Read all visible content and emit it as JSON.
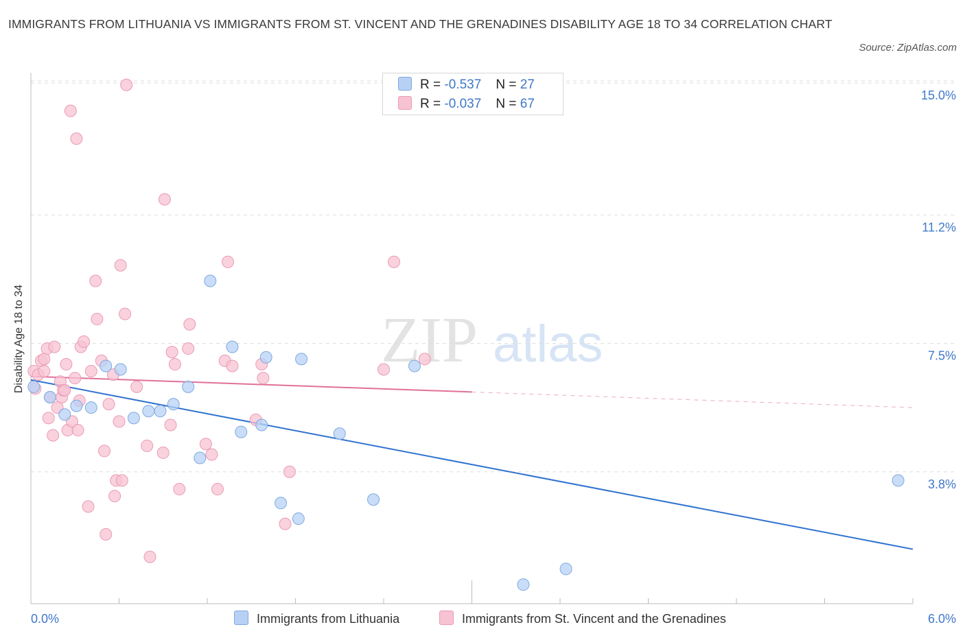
{
  "title": "IMMIGRANTS FROM LITHUANIA VS IMMIGRANTS FROM ST. VINCENT AND THE GRENADINES DISABILITY AGE 18 TO 34 CORRELATION CHART",
  "source": "Source: ZipAtlas.com",
  "watermark": {
    "zip": "ZIP",
    "atlas": "atlas"
  },
  "legend": {
    "rows": [
      {
        "r_label": "R =",
        "r_value": "-0.537",
        "n_label": "N =",
        "n_value": "27"
      },
      {
        "r_label": "R =",
        "r_value": "-0.037",
        "n_label": "N =",
        "n_value": "67"
      }
    ]
  },
  "bottom_legend": [
    "Immigrants from Lithuania",
    "Immigrants from St. Vincent and the Grenadines"
  ],
  "colors": {
    "blue_fill": "#b7d1f5",
    "blue_stroke": "#7fa8e0",
    "blue_line": "#2f72d0",
    "pink_fill": "#f7c3d3",
    "pink_stroke": "#eb9ab3",
    "pink_line": "#e0709a",
    "axis_text": "#3f78c9",
    "grid": "#dddddd"
  },
  "chart_data": {
    "type": "scatter",
    "title": "IMMIGRANTS FROM LITHUANIA VS IMMIGRANTS FROM ST. VINCENT AND THE GRENADINES DISABILITY AGE 18 TO 34 CORRELATION CHART",
    "xlabel": "",
    "ylabel": "Disability Age 18 to 34",
    "xlim": [
      0,
      6.0
    ],
    "ylim": [
      0,
      15.3
    ],
    "x_tick_labels": [
      "0.0%",
      "6.0%"
    ],
    "y_ticks": [
      3.8,
      7.5,
      11.2,
      15.0
    ],
    "y_tick_labels": [
      "3.8%",
      "7.5%",
      "11.2%",
      "15.0%"
    ],
    "grid": "horizontal dashed",
    "legend_position": "top-center",
    "series": [
      {
        "name": "Immigrants from Lithuania",
        "r": -0.537,
        "n": 27,
        "trend": {
          "x0": 0.0,
          "y0": 6.45,
          "x1": 6.0,
          "y1": 1.57,
          "solid_to": 6.0
        },
        "points": [
          [
            0.02,
            6.25
          ],
          [
            0.13,
            5.95
          ],
          [
            0.23,
            5.45
          ],
          [
            0.31,
            5.7
          ],
          [
            0.41,
            5.65
          ],
          [
            0.51,
            6.85
          ],
          [
            0.61,
            6.75
          ],
          [
            0.7,
            5.35
          ],
          [
            0.8,
            5.55
          ],
          [
            0.88,
            5.55
          ],
          [
            0.97,
            5.75
          ],
          [
            1.07,
            6.25
          ],
          [
            1.15,
            4.2
          ],
          [
            1.22,
            9.3
          ],
          [
            1.37,
            7.4
          ],
          [
            1.43,
            4.95
          ],
          [
            1.57,
            5.15
          ],
          [
            1.6,
            7.1
          ],
          [
            1.7,
            2.9
          ],
          [
            1.82,
            2.45
          ],
          [
            1.84,
            7.05
          ],
          [
            2.1,
            4.9
          ],
          [
            2.33,
            3.0
          ],
          [
            2.61,
            6.85
          ],
          [
            3.35,
            0.55
          ],
          [
            3.64,
            1.0
          ],
          [
            5.9,
            3.55
          ]
        ]
      },
      {
        "name": "Immigrants from St. Vincent and the Grenadines",
        "r": -0.037,
        "n": 67,
        "trend": {
          "x0": 0.0,
          "y0": 6.55,
          "x1": 6.0,
          "y1": 5.65,
          "solid_to": 3.0
        },
        "points": [
          [
            0.02,
            6.7
          ],
          [
            0.03,
            6.2
          ],
          [
            0.05,
            6.6
          ],
          [
            0.07,
            7.0
          ],
          [
            0.09,
            7.05
          ],
          [
            0.09,
            6.7
          ],
          [
            0.11,
            7.35
          ],
          [
            0.12,
            5.35
          ],
          [
            0.13,
            5.95
          ],
          [
            0.15,
            4.85
          ],
          [
            0.16,
            7.4
          ],
          [
            0.18,
            5.65
          ],
          [
            0.2,
            6.4
          ],
          [
            0.21,
            5.95
          ],
          [
            0.22,
            6.15
          ],
          [
            0.23,
            6.15
          ],
          [
            0.24,
            6.9
          ],
          [
            0.25,
            5.0
          ],
          [
            0.28,
            5.25
          ],
          [
            0.3,
            6.5
          ],
          [
            0.32,
            5.0
          ],
          [
            0.33,
            5.85
          ],
          [
            0.34,
            7.4
          ],
          [
            0.36,
            7.55
          ],
          [
            0.39,
            2.8
          ],
          [
            0.41,
            6.7
          ],
          [
            0.44,
            9.3
          ],
          [
            0.45,
            8.2
          ],
          [
            0.48,
            7.0
          ],
          [
            0.5,
            4.4
          ],
          [
            0.51,
            2.0
          ],
          [
            0.53,
            5.75
          ],
          [
            0.56,
            6.6
          ],
          [
            0.57,
            3.1
          ],
          [
            0.58,
            3.55
          ],
          [
            0.6,
            5.25
          ],
          [
            0.61,
            9.75
          ],
          [
            0.64,
            8.35
          ],
          [
            0.65,
            14.95
          ],
          [
            0.72,
            6.25
          ],
          [
            0.79,
            4.55
          ],
          [
            0.81,
            1.35
          ],
          [
            0.9,
            4.35
          ],
          [
            0.91,
            11.65
          ],
          [
            0.95,
            5.15
          ],
          [
            0.96,
            7.25
          ],
          [
            0.98,
            6.9
          ],
          [
            1.01,
            3.3
          ],
          [
            1.07,
            7.35
          ],
          [
            1.08,
            8.05
          ],
          [
            1.19,
            4.6
          ],
          [
            1.23,
            4.3
          ],
          [
            1.27,
            3.3
          ],
          [
            1.32,
            7.0
          ],
          [
            1.34,
            9.85
          ],
          [
            1.37,
            6.85
          ],
          [
            1.53,
            5.3
          ],
          [
            1.57,
            6.9
          ],
          [
            1.58,
            6.5
          ],
          [
            1.73,
            2.3
          ],
          [
            1.76,
            3.8
          ],
          [
            2.4,
            6.75
          ],
          [
            2.47,
            9.85
          ],
          [
            2.68,
            7.05
          ],
          [
            0.27,
            14.2
          ],
          [
            0.31,
            13.4
          ],
          [
            0.62,
            3.55
          ]
        ]
      }
    ]
  }
}
